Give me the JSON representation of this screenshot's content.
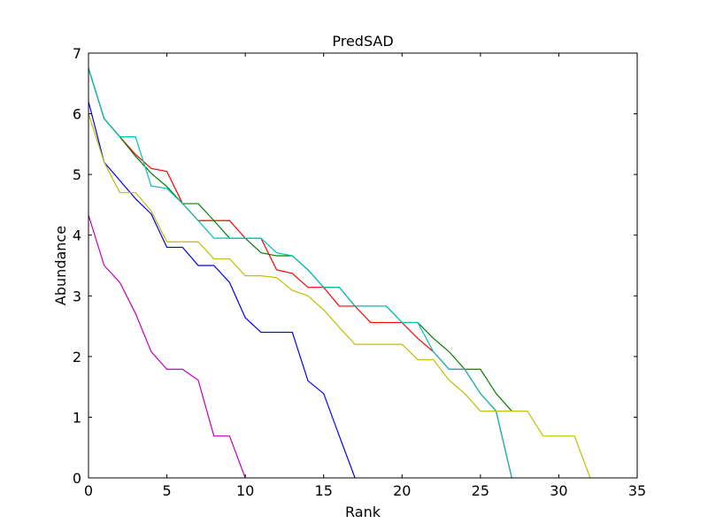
{
  "chart_data": {
    "type": "line",
    "title": "PredSAD",
    "xlabel": "Rank",
    "ylabel": "Abundance",
    "xlim": [
      0,
      35
    ],
    "ylim": [
      0,
      7
    ],
    "xticks": [
      0,
      5,
      10,
      15,
      20,
      25,
      30,
      35
    ],
    "yticks": [
      0,
      1,
      2,
      3,
      4,
      5,
      6,
      7
    ],
    "grid": false,
    "legend": "none",
    "series": [
      {
        "color": "#0000ff",
        "x": [
          0,
          1,
          2,
          3,
          4,
          5,
          6,
          7,
          8,
          9,
          10,
          11,
          12,
          13,
          14,
          15,
          16,
          17
        ],
        "y": [
          6.2,
          5.2,
          4.9,
          4.6,
          4.35,
          3.8,
          3.8,
          3.5,
          3.5,
          3.22,
          2.64,
          2.4,
          2.4,
          2.4,
          1.6,
          1.39,
          0.69,
          0
        ]
      },
      {
        "color": "#ff0000",
        "x": [
          0,
          1,
          2,
          3,
          4,
          5,
          6,
          7,
          8,
          9,
          10,
          11,
          12,
          13,
          14,
          15,
          16,
          17,
          18,
          19,
          20,
          21,
          22,
          23,
          24,
          25,
          26,
          27
        ],
        "y": [
          6.75,
          5.92,
          5.62,
          5.33,
          5.1,
          5.05,
          4.52,
          4.24,
          4.24,
          4.24,
          3.95,
          3.95,
          3.43,
          3.37,
          3.14,
          3.14,
          2.83,
          2.83,
          2.56,
          2.56,
          2.56,
          2.3,
          2.08,
          1.79,
          1.79,
          1.39,
          1.1,
          0
        ]
      },
      {
        "color": "#008000",
        "x": [
          0,
          1,
          2,
          3,
          4,
          5,
          6,
          7,
          8,
          9,
          10,
          11,
          12,
          13,
          14,
          15,
          16,
          17,
          18,
          19,
          20,
          21,
          22,
          23,
          24,
          25,
          26,
          27
        ],
        "y": [
          6.75,
          5.92,
          5.62,
          5.3,
          5.02,
          4.8,
          4.52,
          4.52,
          4.24,
          3.95,
          3.95,
          3.71,
          3.66,
          3.66,
          3.43,
          3.14,
          3.14,
          2.83,
          2.83,
          2.83,
          2.56,
          2.56,
          2.3,
          2.08,
          1.79,
          1.79,
          1.39,
          1.1
        ]
      },
      {
        "color": "#00bfbf",
        "x": [
          0,
          1,
          2,
          3,
          4,
          5,
          6,
          7,
          8,
          9,
          10,
          11,
          12,
          13,
          14,
          15,
          16,
          17,
          18,
          19,
          20,
          21,
          22,
          23,
          24,
          25,
          26,
          27
        ],
        "y": [
          6.75,
          5.92,
          5.62,
          5.62,
          4.81,
          4.77,
          4.52,
          4.24,
          3.95,
          3.95,
          3.95,
          3.95,
          3.71,
          3.66,
          3.43,
          3.14,
          3.14,
          2.83,
          2.83,
          2.83,
          2.56,
          2.56,
          2.08,
          1.79,
          1.79,
          1.39,
          1.1,
          0
        ]
      },
      {
        "color": "#bfbf00",
        "x": [
          0,
          1,
          2,
          3,
          4,
          5,
          6,
          7,
          8,
          9,
          10,
          11,
          12,
          13,
          14,
          15,
          16,
          17,
          18,
          19,
          20,
          21,
          22,
          23,
          24,
          25,
          26,
          27,
          28,
          29,
          30,
          31,
          32
        ],
        "y": [
          6.0,
          5.2,
          4.7,
          4.7,
          4.4,
          3.89,
          3.89,
          3.89,
          3.61,
          3.61,
          3.33,
          3.33,
          3.3,
          3.09,
          3.0,
          2.77,
          2.48,
          2.2,
          2.2,
          2.2,
          2.2,
          1.95,
          1.95,
          1.61,
          1.39,
          1.1,
          1.1,
          1.1,
          1.1,
          0.69,
          0.69,
          0.69,
          0
        ]
      },
      {
        "color": "#bf00bf",
        "x": [
          0,
          1,
          2,
          3,
          4,
          5,
          6,
          7,
          8,
          9,
          10
        ],
        "y": [
          4.33,
          3.5,
          3.22,
          2.71,
          2.08,
          1.79,
          1.79,
          1.61,
          0.69,
          0.69,
          0
        ]
      }
    ]
  }
}
